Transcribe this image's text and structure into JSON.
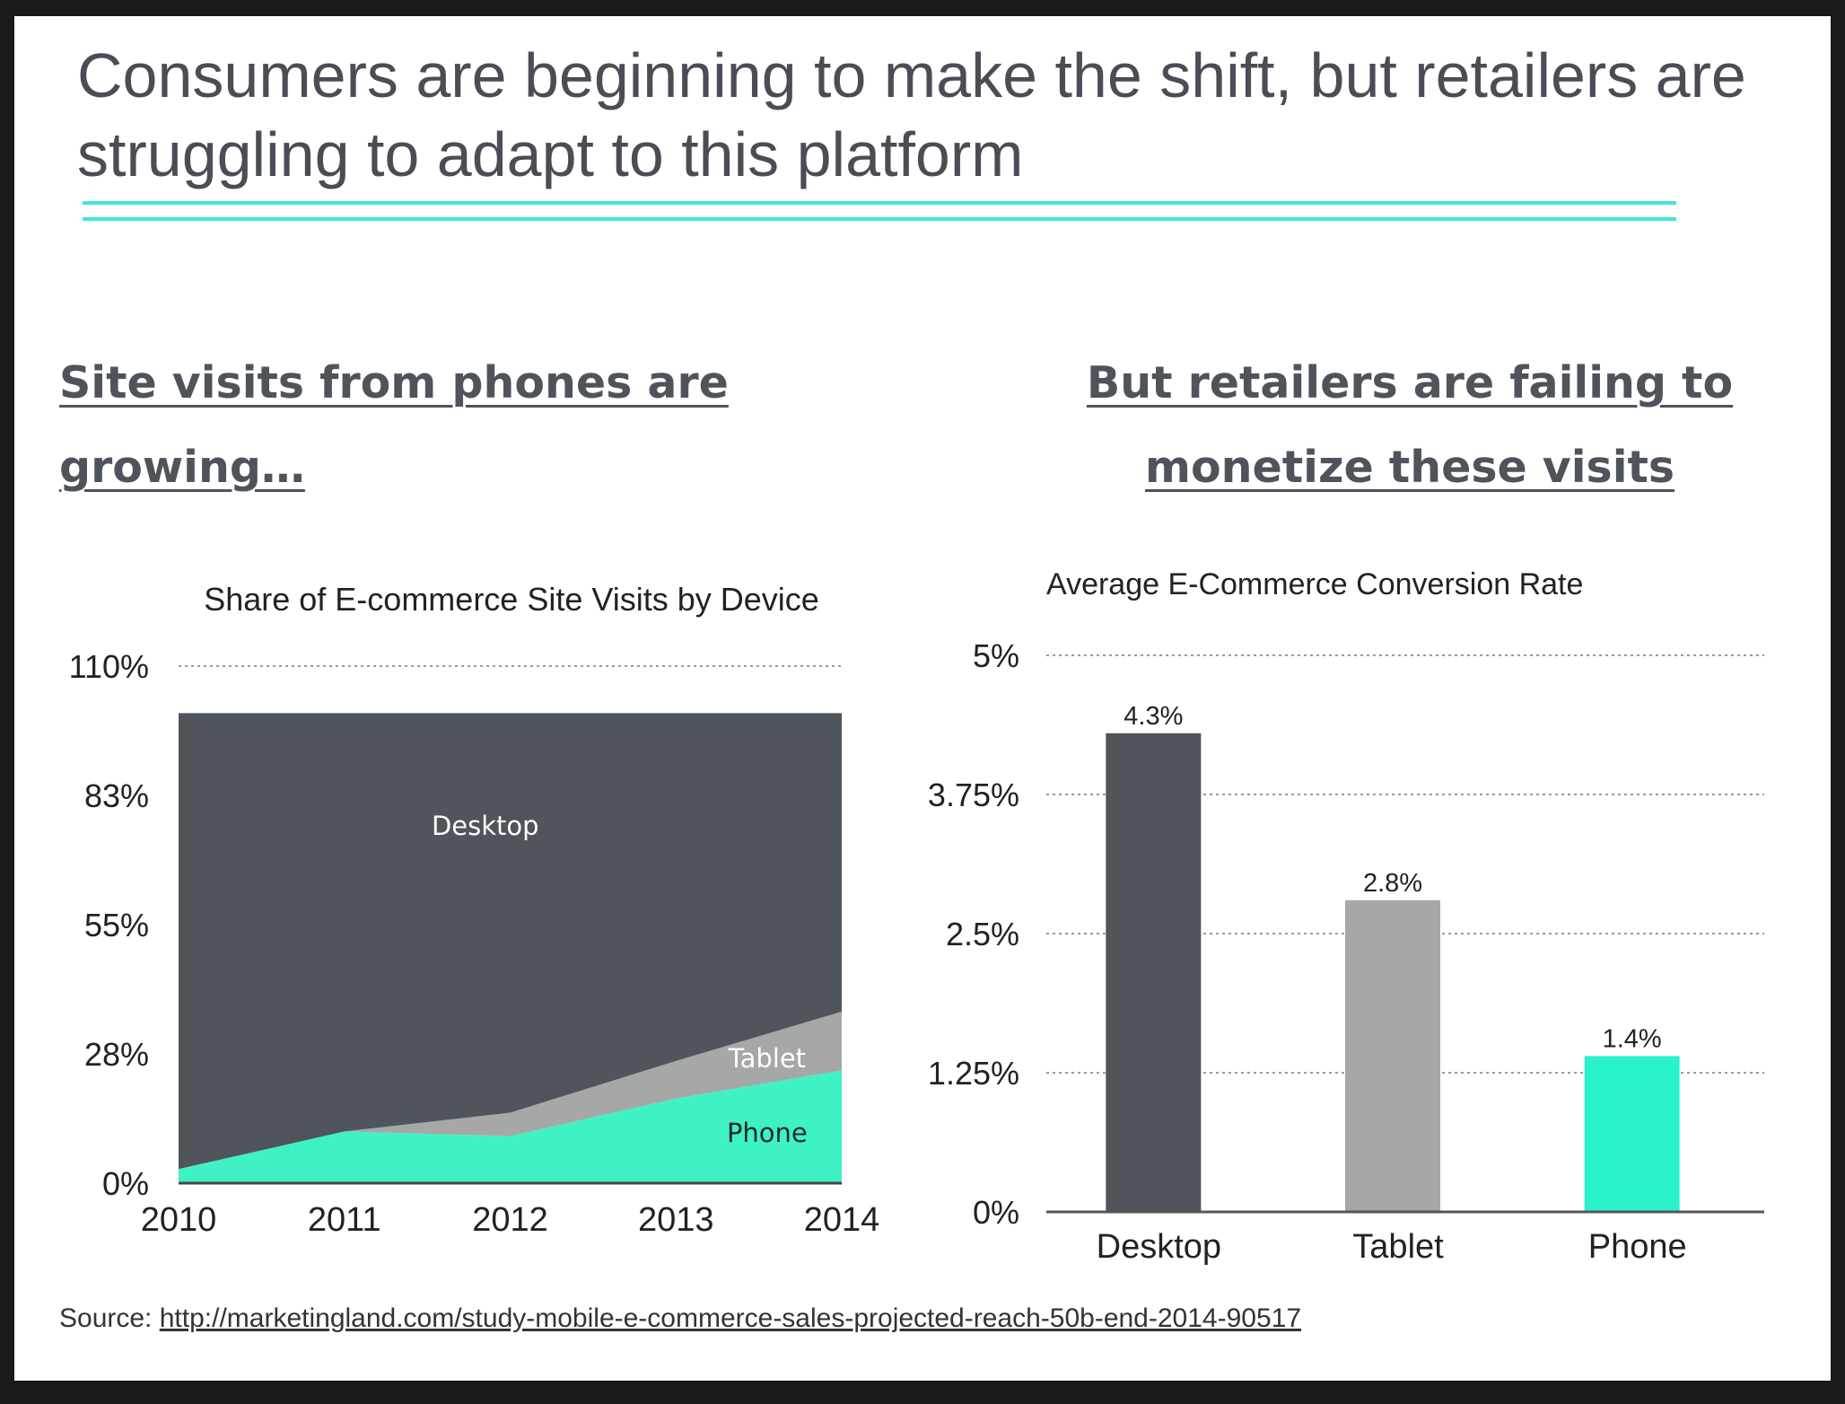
{
  "title": "Consumers are beginning to make the shift, but retailers are struggling to adapt to this platform",
  "left_heading": "Site visits from phones are growing…",
  "right_heading": "But retailers are failing to monetize these visits",
  "source": {
    "label": "Source:",
    "url": "http://marketingland.com/study-mobile-e-commerce-sales-projected-reach-50b-end-2014-90517"
  },
  "colors": {
    "desktop": "#50545b",
    "tablet": "#a6a8a7",
    "phone": "#3ef2c3",
    "phone_bar": "#2af3cc",
    "accent_rule": "#3fe8d6"
  },
  "chart_data": [
    {
      "type": "area",
      "stacked": true,
      "title": "Share of E-commerce Site Visits by Device",
      "x": [
        "2010",
        "2011",
        "2012",
        "2013",
        "2014"
      ],
      "series": [
        {
          "name": "Phone",
          "values": [
            3,
            11,
            10,
            18,
            24
          ]
        },
        {
          "name": "Tablet",
          "values": [
            0,
            0,
            5,
            8,
            12.5
          ]
        },
        {
          "name": "Desktop",
          "values": [
            97,
            89,
            85,
            74,
            63.5
          ]
        }
      ],
      "yticks": [
        "0%",
        "28%",
        "55%",
        "83%",
        "110%"
      ],
      "ylim": [
        0,
        110
      ],
      "grid": true,
      "legend": "inline-labels"
    },
    {
      "type": "bar",
      "title": "Average E-Commerce Conversion Rate",
      "categories": [
        "Desktop",
        "Tablet",
        "Phone"
      ],
      "values": [
        4.3,
        2.8,
        1.4
      ],
      "data_labels": [
        "4.3%",
        "2.8%",
        "1.4%"
      ],
      "yticks": [
        "0%",
        "1.25%",
        "2.5%",
        "3.75%",
        "5%"
      ],
      "ylim": [
        0,
        5
      ],
      "grid": true
    }
  ]
}
